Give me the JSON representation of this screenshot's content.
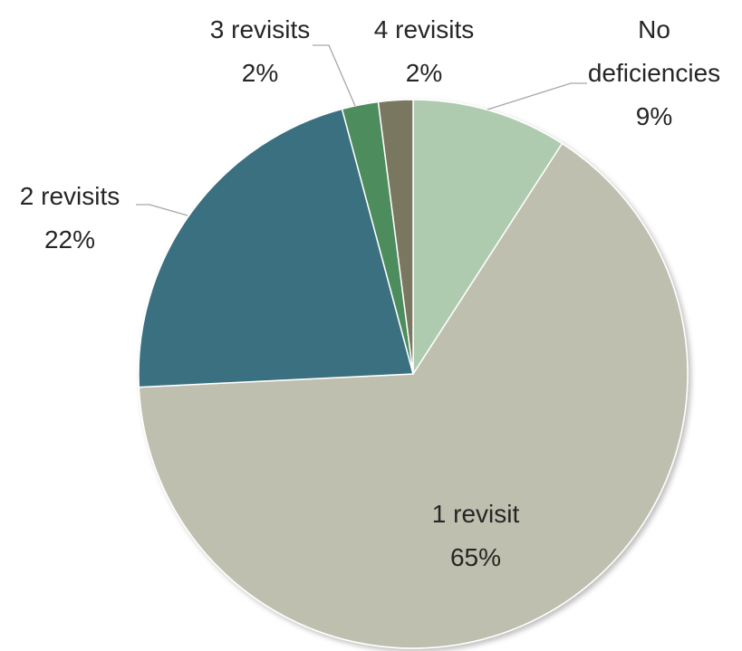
{
  "chart_data": {
    "type": "pie",
    "title": "",
    "slices": [
      {
        "name": "No deficiencies",
        "label_lines": [
          "No",
          "deficiencies"
        ],
        "percent_label": "9%",
        "value": 9.13,
        "color": "#aecbb0"
      },
      {
        "name": "1 revisit",
        "label_lines": [
          "1 revisit"
        ],
        "percent_label": "65%",
        "value": 65.1,
        "color": "#bfbfaf"
      },
      {
        "name": "2 revisits",
        "label_lines": [
          "2 revisits"
        ],
        "percent_label": "22%",
        "value": 21.6,
        "color": "#3b7080"
      },
      {
        "name": "3 revisits",
        "label_lines": [
          "3 revisits"
        ],
        "percent_label": "2%",
        "value": 2.14,
        "color": "#4e8c5c"
      },
      {
        "name": "4 revisits",
        "label_lines": [
          "4 revisits"
        ],
        "percent_label": "2%",
        "value": 2.03,
        "color": "#7a7761"
      }
    ],
    "start_angle": "12 o'clock",
    "direction": "clockwise",
    "legend": "none",
    "data_labels": "category name and percentage"
  }
}
